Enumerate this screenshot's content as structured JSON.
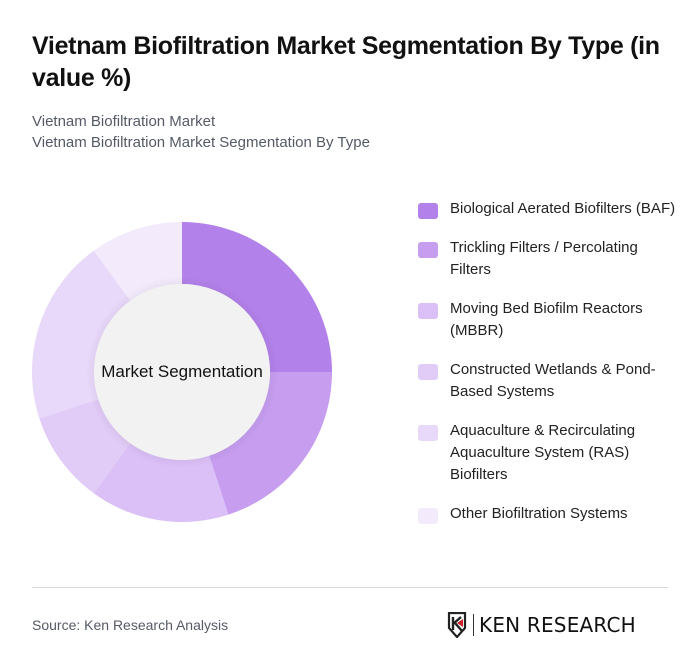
{
  "header": {
    "title": "Vietnam Biofiltration Market Segmentation By Type (in value %)",
    "subtitle_line1": "Vietnam Biofiltration Market",
    "subtitle_line2": "Vietnam Biofiltration Market Segmentation By Type"
  },
  "chart": {
    "center_label": "Market Segmentation"
  },
  "legend": {
    "items": [
      {
        "label": "Biological Aerated Biofilters (BAF)",
        "color": "#b381ea"
      },
      {
        "label": "Trickling Filters / Percolating Filters",
        "color": "#c69def"
      },
      {
        "label": "Moving Bed Biofilm Reactors (MBBR)",
        "color": "#dbbff7"
      },
      {
        "label": "Constructed Wetlands & Pond-Based Systems",
        "color": "#e1cbf7"
      },
      {
        "label": "Aquaculture & Recirculating Aquaculture System (RAS) Biofilters",
        "color": "#e8d8fa"
      },
      {
        "label": "Other Biofiltration Systems",
        "color": "#f3ebfc"
      }
    ]
  },
  "footer": {
    "source": "Source: Ken Research Analysis",
    "logo_text": "KEN RESEARCH",
    "logo_icon": "ken-research-logo-icon"
  },
  "chart_data": {
    "type": "pie",
    "subtype": "donut",
    "title": "Vietnam Biofiltration Market Segmentation By Type (in value %)",
    "center_label": "Market Segmentation",
    "categories": [
      "Biological Aerated Biofilters (BAF)",
      "Trickling Filters / Percolating Filters",
      "Moving Bed Biofilm Reactors (MBBR)",
      "Constructed Wetlands & Pond-Based Systems",
      "Aquaculture & Recirculating Aquaculture System (RAS) Biofilters",
      "Other Biofiltration Systems"
    ],
    "values": [
      25,
      20,
      15,
      10,
      20,
      10
    ],
    "colors": [
      "#b381ea",
      "#c69def",
      "#dbbff7",
      "#e1cbf7",
      "#e8d8fa",
      "#f3ebfc"
    ],
    "unit": "%",
    "start_angle": "12 o'clock, clockwise",
    "legend_position": "right"
  }
}
